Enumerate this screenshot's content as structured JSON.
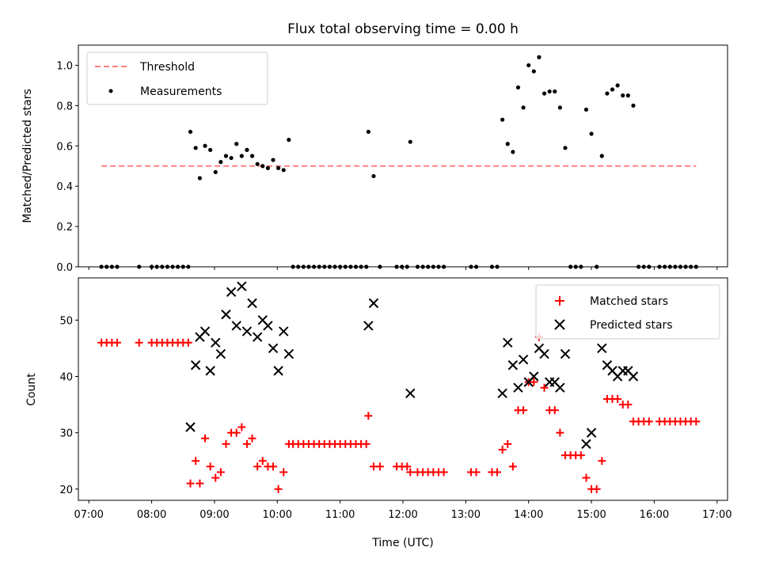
{
  "chart_data": [
    {
      "type": "scatter",
      "title": "Flux total observing time = 0.00 h",
      "xlabel": "",
      "ylabel": "Matched/Predicted stars",
      "ylim": [
        0,
        1.1
      ],
      "yticks": [
        "0.0",
        "0.2",
        "0.4",
        "0.6",
        "0.8",
        "1.0"
      ],
      "xlim": [
        "06:50",
        "17:10"
      ],
      "grid": false,
      "legend": {
        "position": "top-left",
        "entries": [
          "Threshold",
          "Measurements"
        ]
      },
      "threshold": {
        "name": "Threshold",
        "value": 0.5,
        "x": [
          "07:12",
          "16:40"
        ],
        "color": "#ff8080",
        "style": "dashed"
      },
      "series": [
        {
          "name": "Measurements",
          "color": "#000000",
          "marker": "dot",
          "points": [
            [
              "07:12",
              0
            ],
            [
              "07:17",
              0
            ],
            [
              "07:22",
              0
            ],
            [
              "07:27",
              0
            ],
            [
              "07:48",
              0
            ],
            [
              "08:00",
              0
            ],
            [
              "08:05",
              0
            ],
            [
              "08:10",
              0
            ],
            [
              "08:15",
              0
            ],
            [
              "08:20",
              0
            ],
            [
              "08:25",
              0
            ],
            [
              "08:30",
              0
            ],
            [
              "08:35",
              0
            ],
            [
              "08:37",
              0.67
            ],
            [
              "08:42",
              0.59
            ],
            [
              "08:46",
              0.44
            ],
            [
              "08:51",
              0.6
            ],
            [
              "08:56",
              0.58
            ],
            [
              "09:01",
              0.47
            ],
            [
              "09:06",
              0.52
            ],
            [
              "09:11",
              0.55
            ],
            [
              "09:16",
              0.54
            ],
            [
              "09:21",
              0.61
            ],
            [
              "09:26",
              0.55
            ],
            [
              "09:31",
              0.58
            ],
            [
              "09:36",
              0.55
            ],
            [
              "09:41",
              0.51
            ],
            [
              "09:46",
              0.5
            ],
            [
              "09:51",
              0.49
            ],
            [
              "09:56",
              0.53
            ],
            [
              "10:01",
              0.49
            ],
            [
              "10:06",
              0.48
            ],
            [
              "10:11",
              0.63
            ],
            [
              "10:15",
              0
            ],
            [
              "10:20",
              0
            ],
            [
              "10:25",
              0
            ],
            [
              "10:30",
              0
            ],
            [
              "10:35",
              0
            ],
            [
              "10:40",
              0
            ],
            [
              "10:45",
              0
            ],
            [
              "10:50",
              0
            ],
            [
              "10:55",
              0
            ],
            [
              "11:00",
              0
            ],
            [
              "11:05",
              0
            ],
            [
              "11:10",
              0
            ],
            [
              "11:15",
              0
            ],
            [
              "11:20",
              0
            ],
            [
              "11:25",
              0
            ],
            [
              "11:27",
              0.67
            ],
            [
              "11:32",
              0.45
            ],
            [
              "11:38",
              0
            ],
            [
              "11:54",
              0
            ],
            [
              "11:59",
              0
            ],
            [
              "12:04",
              0
            ],
            [
              "12:07",
              0.62
            ],
            [
              "12:14",
              0
            ],
            [
              "12:19",
              0
            ],
            [
              "12:24",
              0
            ],
            [
              "12:29",
              0
            ],
            [
              "12:34",
              0
            ],
            [
              "12:39",
              0
            ],
            [
              "13:05",
              0
            ],
            [
              "13:10",
              0
            ],
            [
              "13:25",
              0
            ],
            [
              "13:30",
              0
            ],
            [
              "13:35",
              0.73
            ],
            [
              "13:40",
              0.61
            ],
            [
              "13:45",
              0.57
            ],
            [
              "13:50",
              0.89
            ],
            [
              "13:55",
              0.79
            ],
            [
              "14:00",
              1.0
            ],
            [
              "14:05",
              0.97
            ],
            [
              "14:10",
              1.04
            ],
            [
              "14:15",
              0.86
            ],
            [
              "14:20",
              0.87
            ],
            [
              "14:25",
              0.87
            ],
            [
              "14:30",
              0.79
            ],
            [
              "14:35",
              0.59
            ],
            [
              "14:40",
              0
            ],
            [
              "14:45",
              0
            ],
            [
              "14:50",
              0
            ],
            [
              "14:55",
              0.78
            ],
            [
              "15:00",
              0.66
            ],
            [
              "15:05",
              0
            ],
            [
              "15:10",
              0.55
            ],
            [
              "15:15",
              0.86
            ],
            [
              "15:20",
              0.88
            ],
            [
              "15:25",
              0.9
            ],
            [
              "15:30",
              0.85
            ],
            [
              "15:35",
              0.85
            ],
            [
              "15:40",
              0.8
            ],
            [
              "15:45",
              0
            ],
            [
              "15:50",
              0
            ],
            [
              "15:55",
              0
            ],
            [
              "16:05",
              0
            ],
            [
              "16:10",
              0
            ],
            [
              "16:15",
              0
            ],
            [
              "16:20",
              0
            ],
            [
              "16:25",
              0
            ],
            [
              "16:30",
              0
            ],
            [
              "16:35",
              0
            ],
            [
              "16:40",
              0
            ]
          ]
        }
      ]
    },
    {
      "type": "scatter",
      "title": "",
      "xlabel": "Time (UTC)",
      "ylabel": "Count",
      "ylim": [
        18,
        57.5
      ],
      "yticks": [
        "20",
        "30",
        "40",
        "50"
      ],
      "xlim": [
        "06:50",
        "17:10"
      ],
      "xticks": [
        "07:00",
        "08:00",
        "09:00",
        "10:00",
        "11:00",
        "12:00",
        "13:00",
        "14:00",
        "15:00",
        "16:00",
        "17:00"
      ],
      "grid": false,
      "legend": {
        "position": "top-right",
        "entries": [
          "Matched stars",
          "Predicted stars"
        ]
      },
      "series": [
        {
          "name": "Matched stars",
          "color": "#ff0000",
          "marker": "plus",
          "points": [
            [
              "07:12",
              46
            ],
            [
              "07:17",
              46
            ],
            [
              "07:22",
              46
            ],
            [
              "07:27",
              46
            ],
            [
              "07:48",
              46
            ],
            [
              "08:00",
              46
            ],
            [
              "08:05",
              46
            ],
            [
              "08:10",
              46
            ],
            [
              "08:15",
              46
            ],
            [
              "08:20",
              46
            ],
            [
              "08:25",
              46
            ],
            [
              "08:30",
              46
            ],
            [
              "08:35",
              46
            ],
            [
              "08:37",
              21
            ],
            [
              "08:42",
              25
            ],
            [
              "08:46",
              21
            ],
            [
              "08:51",
              29
            ],
            [
              "08:56",
              24
            ],
            [
              "09:01",
              22
            ],
            [
              "09:06",
              23
            ],
            [
              "09:11",
              28
            ],
            [
              "09:16",
              30
            ],
            [
              "09:21",
              30
            ],
            [
              "09:26",
              31
            ],
            [
              "09:31",
              28
            ],
            [
              "09:36",
              29
            ],
            [
              "09:41",
              24
            ],
            [
              "09:46",
              25
            ],
            [
              "09:51",
              24
            ],
            [
              "09:56",
              24
            ],
            [
              "10:01",
              20
            ],
            [
              "10:06",
              23
            ],
            [
              "10:11",
              28
            ],
            [
              "10:15",
              28
            ],
            [
              "10:20",
              28
            ],
            [
              "10:25",
              28
            ],
            [
              "10:30",
              28
            ],
            [
              "10:35",
              28
            ],
            [
              "10:40",
              28
            ],
            [
              "10:45",
              28
            ],
            [
              "10:50",
              28
            ],
            [
              "10:55",
              28
            ],
            [
              "11:00",
              28
            ],
            [
              "11:05",
              28
            ],
            [
              "11:10",
              28
            ],
            [
              "11:15",
              28
            ],
            [
              "11:20",
              28
            ],
            [
              "11:25",
              28
            ],
            [
              "11:27",
              33
            ],
            [
              "11:32",
              24
            ],
            [
              "11:38",
              24
            ],
            [
              "11:54",
              24
            ],
            [
              "11:59",
              24
            ],
            [
              "12:04",
              24
            ],
            [
              "12:07",
              23
            ],
            [
              "12:14",
              23
            ],
            [
              "12:19",
              23
            ],
            [
              "12:24",
              23
            ],
            [
              "12:29",
              23
            ],
            [
              "12:34",
              23
            ],
            [
              "12:39",
              23
            ],
            [
              "13:05",
              23
            ],
            [
              "13:10",
              23
            ],
            [
              "13:25",
              23
            ],
            [
              "13:30",
              23
            ],
            [
              "13:35",
              27
            ],
            [
              "13:40",
              28
            ],
            [
              "13:45",
              24
            ],
            [
              "13:50",
              34
            ],
            [
              "13:55",
              34
            ],
            [
              "14:00",
              39
            ],
            [
              "14:05",
              39
            ],
            [
              "14:10",
              47
            ],
            [
              "14:15",
              38
            ],
            [
              "14:20",
              34
            ],
            [
              "14:25",
              34
            ],
            [
              "14:30",
              30
            ],
            [
              "14:35",
              26
            ],
            [
              "14:40",
              26
            ],
            [
              "14:45",
              26
            ],
            [
              "14:50",
              26
            ],
            [
              "14:55",
              22
            ],
            [
              "15:00",
              20
            ],
            [
              "15:05",
              20
            ],
            [
              "15:10",
              25
            ],
            [
              "15:15",
              36
            ],
            [
              "15:20",
              36
            ],
            [
              "15:25",
              36
            ],
            [
              "15:30",
              35
            ],
            [
              "15:35",
              35
            ],
            [
              "15:40",
              32
            ],
            [
              "15:45",
              32
            ],
            [
              "15:50",
              32
            ],
            [
              "15:55",
              32
            ],
            [
              "16:05",
              32
            ],
            [
              "16:10",
              32
            ],
            [
              "16:15",
              32
            ],
            [
              "16:20",
              32
            ],
            [
              "16:25",
              32
            ],
            [
              "16:30",
              32
            ],
            [
              "16:35",
              32
            ],
            [
              "16:40",
              32
            ]
          ]
        },
        {
          "name": "Predicted stars",
          "color": "#000000",
          "marker": "x",
          "points": [
            [
              "08:37",
              31
            ],
            [
              "08:42",
              42
            ],
            [
              "08:46",
              47
            ],
            [
              "08:51",
              48
            ],
            [
              "08:56",
              41
            ],
            [
              "09:01",
              46
            ],
            [
              "09:06",
              44
            ],
            [
              "09:11",
              51
            ],
            [
              "09:16",
              55
            ],
            [
              "09:21",
              49
            ],
            [
              "09:26",
              56
            ],
            [
              "09:31",
              48
            ],
            [
              "09:36",
              53
            ],
            [
              "09:41",
              47
            ],
            [
              "09:46",
              50
            ],
            [
              "09:51",
              49
            ],
            [
              "09:56",
              45
            ],
            [
              "10:01",
              41
            ],
            [
              "10:06",
              48
            ],
            [
              "10:11",
              44
            ],
            [
              "11:27",
              49
            ],
            [
              "11:32",
              53
            ],
            [
              "12:07",
              37
            ],
            [
              "13:35",
              37
            ],
            [
              "13:40",
              46
            ],
            [
              "13:45",
              42
            ],
            [
              "13:50",
              38
            ],
            [
              "13:55",
              43
            ],
            [
              "14:00",
              39
            ],
            [
              "14:05",
              40
            ],
            [
              "14:10",
              45
            ],
            [
              "14:15",
              44
            ],
            [
              "14:20",
              39
            ],
            [
              "14:25",
              39
            ],
            [
              "14:30",
              38
            ],
            [
              "14:35",
              44
            ],
            [
              "14:55",
              28
            ],
            [
              "15:00",
              30
            ],
            [
              "15:10",
              45
            ],
            [
              "15:15",
              42
            ],
            [
              "15:20",
              41
            ],
            [
              "15:25",
              40
            ],
            [
              "15:30",
              41
            ],
            [
              "15:35",
              41
            ],
            [
              "15:40",
              40
            ]
          ]
        }
      ]
    }
  ]
}
